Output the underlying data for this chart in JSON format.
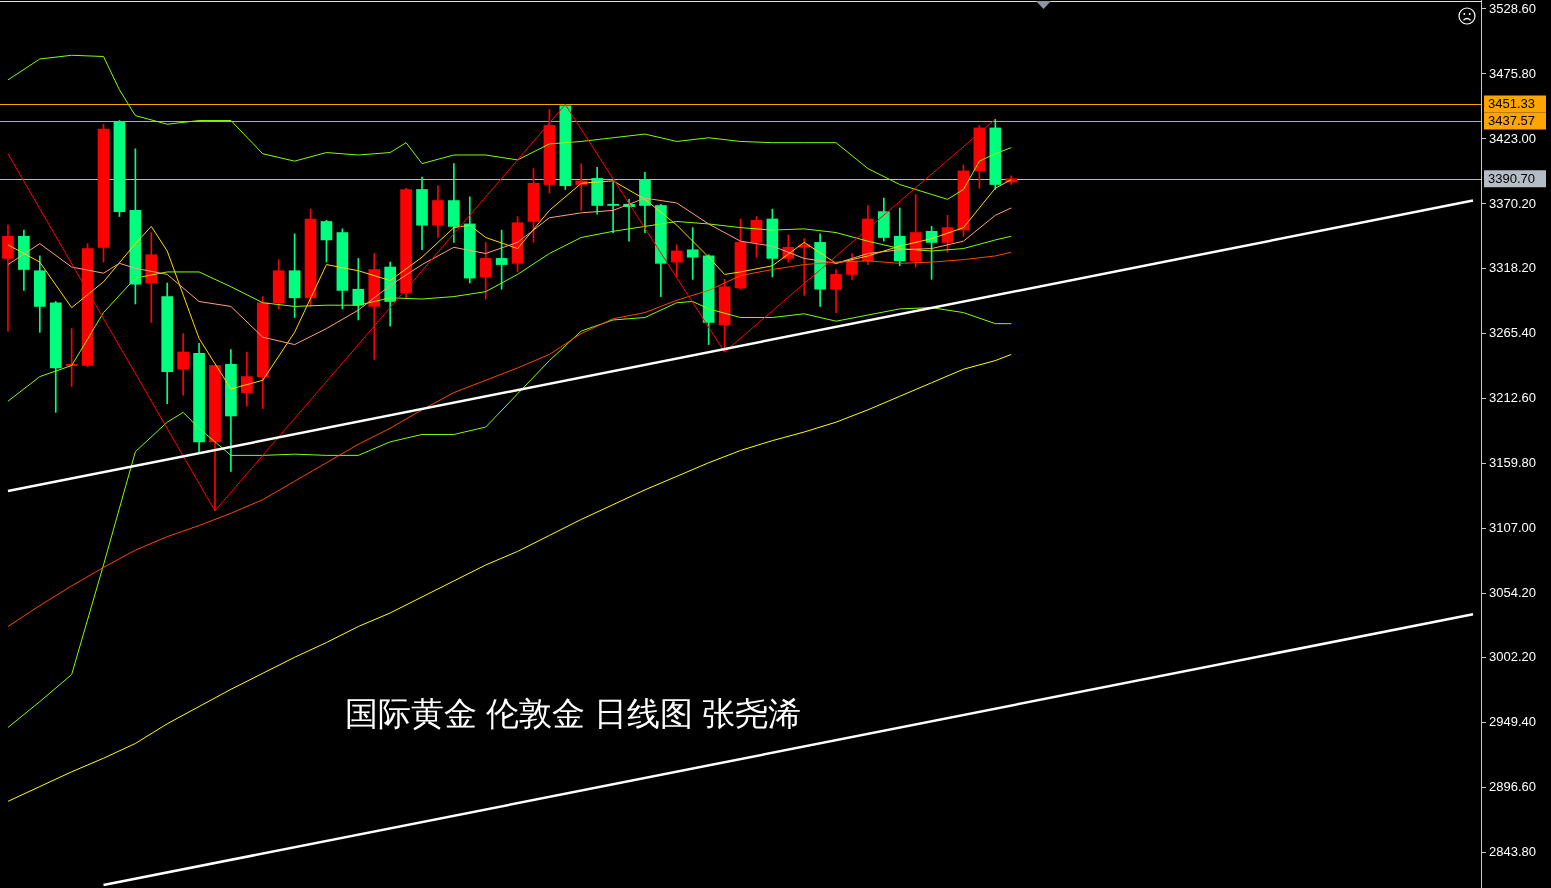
{
  "chart_data": {
    "type": "candlestick",
    "title": "国际黄金 伦敦金 日线图 张尧浠",
    "categories": [
      null,
      null,
      null,
      null,
      null,
      null,
      null,
      null,
      null,
      null,
      null,
      null,
      null,
      null,
      null,
      null,
      null,
      null,
      null,
      null,
      null,
      null,
      null,
      null,
      null,
      null,
      null,
      null,
      null,
      null,
      null,
      null,
      null,
      null,
      null,
      null,
      null,
      null,
      null,
      null,
      null,
      null,
      null,
      null,
      null,
      null,
      null,
      null,
      null,
      null,
      null,
      null,
      null,
      null,
      null,
      null,
      null,
      null,
      null,
      null,
      null,
      null,
      null,
      null,
      null,
      null,
      null,
      null,
      null,
      null,
      null,
      null,
      null,
      null,
      null,
      null,
      null,
      null,
      null,
      null,
      null,
      null,
      null,
      null,
      null,
      null,
      null,
      null,
      null,
      null,
      null,
      null,
      null
    ],
    "ohlc": [
      [
        3326,
        3353,
        3267,
        3344
      ],
      [
        3344,
        3349,
        3300,
        3317
      ],
      [
        3316,
        3328,
        3266,
        3287
      ],
      [
        3290,
        3291,
        3201,
        3237
      ],
      [
        3239,
        3269,
        3222,
        3240
      ],
      [
        3239,
        3338,
        3238,
        3334
      ],
      [
        3335,
        3435,
        3323,
        3431
      ],
      [
        3437,
        3438,
        3360,
        3364
      ],
      [
        3365,
        3415,
        3289,
        3305
      ],
      [
        3306,
        3347,
        3274,
        3329
      ],
      [
        3295,
        3306,
        3208,
        3234
      ],
      [
        3236,
        3265,
        3215,
        3250
      ],
      [
        3249,
        3257,
        3168,
        3177
      ],
      [
        3177,
        3239,
        3121,
        3239
      ],
      [
        3240,
        3252,
        3153,
        3198
      ],
      [
        3217,
        3250,
        3206,
        3230
      ],
      [
        3230,
        3295,
        3204,
        3290
      ],
      [
        3290,
        3325,
        3285,
        3316
      ],
      [
        3316,
        3346,
        3278,
        3294
      ],
      [
        3294,
        3366,
        3287,
        3358
      ],
      [
        3356,
        3357,
        3323,
        3341
      ],
      [
        3347,
        3350,
        3285,
        3300
      ],
      [
        3301,
        3326,
        3276,
        3288
      ],
      [
        3287,
        3330,
        3244,
        3317
      ],
      [
        3319,
        3323,
        3271,
        3291
      ],
      [
        3298,
        3383,
        3294,
        3382
      ],
      [
        3382,
        3392,
        3333,
        3353
      ],
      [
        3353,
        3385,
        3343,
        3373
      ],
      [
        3373,
        3403,
        3339,
        3352
      ],
      [
        3354,
        3376,
        3306,
        3310
      ],
      [
        3311,
        3339,
        3293,
        3326
      ],
      [
        3326,
        3349,
        3301,
        3321
      ],
      [
        3322,
        3360,
        3315,
        3355
      ],
      [
        3356,
        3399,
        3339,
        3387
      ],
      [
        3386,
        3447,
        3379,
        3434
      ],
      [
        3450,
        3451,
        3382,
        3385
      ],
      [
        3386,
        3403,
        3365,
        3389
      ],
      [
        3391,
        3400,
        3362,
        3369
      ],
      [
        3370,
        3388,
        3347,
        3369
      ],
      [
        3370,
        3374,
        3340,
        3368
      ],
      [
        3390,
        3396,
        3347,
        3369
      ],
      [
        3369,
        3370,
        3295,
        3322
      ],
      [
        3323,
        3337,
        3311,
        3332
      ],
      [
        3333,
        3351,
        3309,
        3327
      ],
      [
        3328,
        3329,
        3256,
        3274
      ],
      [
        3272,
        3309,
        3250,
        3303
      ],
      [
        3302,
        3358,
        3301,
        3339
      ],
      [
        3339,
        3360,
        3327,
        3357
      ],
      [
        3358,
        3366,
        3311,
        3326
      ],
      [
        3326,
        3345,
        3323,
        3335
      ],
      [
        3335,
        3342,
        3296,
        3337
      ],
      [
        3339,
        3346,
        3287,
        3301
      ],
      [
        3301,
        3317,
        3282,
        3313
      ],
      [
        3313,
        3330,
        3309,
        3324
      ],
      [
        3324,
        3369,
        3321,
        3358
      ],
      [
        3364,
        3375,
        3340,
        3343
      ],
      [
        3344,
        3367,
        3320,
        3324
      ],
      [
        3324,
        3378,
        3319,
        3347
      ],
      [
        3348,
        3352,
        3309,
        3339
      ],
      [
        3339,
        3361,
        3331,
        3351
      ],
      [
        3349,
        3402,
        3344,
        3397
      ],
      [
        3397,
        3434,
        3383,
        3432
      ],
      [
        3432,
        3439,
        3382,
        3386
      ],
      [
        3388,
        3393,
        3386,
        3390.7
      ],
      null,
      null,
      null,
      null,
      null,
      null,
      null,
      null,
      null,
      null,
      null,
      null,
      null,
      null,
      null,
      null,
      null,
      null,
      null,
      null,
      null,
      null,
      null,
      null,
      null,
      null,
      null,
      null,
      null
    ],
    "colors": [
      "#ff0000",
      "#00ff7f",
      "#00ff7f",
      "#00ff7f",
      "#ff0000",
      "#ff0000",
      "#ff0000",
      "#00ff7f",
      "#00ff7f",
      "#ff0000",
      "#00ff7f",
      "#ff0000",
      "#00ff7f",
      "#ff0000",
      "#00ff7f",
      "#ff0000",
      "#ff0000",
      "#ff0000",
      "#00ff7f",
      "#ff0000",
      "#00ff7f",
      "#00ff7f",
      "#00ff7f",
      "#ff0000",
      "#00ff7f",
      "#ff0000",
      "#00ff7f",
      "#ff0000",
      "#00ff7f",
      "#00ff7f",
      "#ff0000",
      "#00ff7f",
      "#ff0000",
      "#ff0000",
      "#ff0000",
      "#00ff7f",
      "#ff0000",
      "#00ff7f",
      "#00ff7f",
      "#00ff7f",
      "#00ff7f",
      "#00ff7f",
      "#ff0000",
      "#00ff7f",
      "#00ff7f",
      "#ff0000",
      "#ff0000",
      "#ff0000",
      "#00ff7f",
      "#ff0000",
      "#ff0000",
      "#00ff7f",
      "#ff0000",
      "#ff0000",
      "#ff0000",
      "#00ff7f",
      "#00ff7f",
      "#ff0000",
      "#00ff7f",
      "#ff0000",
      "#ff0000",
      "#ff0000",
      "#00ff7f",
      "#ff0000",
      null,
      null,
      null,
      null,
      null,
      null,
      null,
      null,
      null,
      null,
      null,
      null,
      null,
      null,
      null,
      null,
      null,
      null,
      null,
      null,
      null,
      null,
      null,
      null,
      null,
      null,
      null,
      null,
      null
    ],
    "series": [
      {
        "type": "line",
        "color": "#7fff00",
        "values": [
          3471,
          null,
          3488,
          null,
          3491,
          null,
          3490,
          3463,
          3442,
          null,
          3435,
          null,
          3438,
          null,
          3438,
          null,
          3411,
          null,
          3405,
          null,
          3412,
          null,
          3410,
          null,
          3412,
          3420,
          3403,
          null,
          3410,
          null,
          3410,
          null,
          3406,
          null,
          3419,
          null,
          3421,
          null,
          3424,
          null,
          3427,
          null,
          3421,
          null,
          3424,
          null,
          3421,
          null,
          3420,
          null,
          3420,
          null,
          3420,
          null,
          3399,
          null,
          3386,
          null,
          3378,
          3374,
          3382,
          3405,
          3411,
          3416,
          null,
          null,
          null,
          null,
          null,
          null,
          null,
          null,
          null,
          null,
          null,
          null,
          null,
          null,
          null,
          null,
          null,
          null,
          null,
          null,
          null,
          null,
          null,
          null,
          null,
          null,
          null,
          null,
          null
        ]
      },
      {
        "type": "line",
        "color": "#7fff00",
        "values": [
          3210,
          null,
          3230,
          null,
          3239,
          null,
          3282,
          null,
          3310,
          null,
          3315,
          null,
          3315,
          null,
          3303,
          null,
          3290,
          null,
          3287,
          null,
          3288,
          null,
          3288,
          null,
          3294,
          null,
          3293,
          null,
          3295,
          null,
          3299,
          null,
          3313,
          null,
          3330,
          null,
          3343,
          null,
          3348,
          null,
          3352,
          null,
          3356,
          null,
          3354,
          null,
          3351,
          null,
          3349,
          null,
          3350,
          null,
          3347,
          null,
          3340,
          null,
          3334,
          null,
          3332,
          null,
          3334,
          null,
          3341,
          3344,
          null,
          null,
          null,
          null,
          null,
          null,
          null,
          null,
          null,
          null,
          null,
          null,
          null,
          null,
          null,
          null,
          null,
          null,
          null,
          null,
          null,
          null,
          null,
          null,
          null,
          null,
          null,
          null,
          null
        ]
      },
      {
        "type": "line",
        "color": "#7fff00",
        "values": [
          2945,
          null,
          2966,
          null,
          2988,
          null,
          3077,
          null,
          3169,
          null,
          3193,
          3201,
          3188,
          null,
          3166,
          null,
          3166,
          null,
          3167,
          null,
          3166,
          null,
          3166,
          null,
          3177,
          null,
          3183,
          null,
          3183,
          null,
          3189,
          null,
          3216,
          null,
          3243,
          null,
          3267,
          null,
          3276,
          null,
          3278,
          null,
          3290,
          3291,
          3285,
          null,
          3278,
          null,
          3278,
          null,
          3281,
          null,
          3275,
          null,
          3280,
          null,
          3285,
          null,
          3286,
          null,
          3282,
          null,
          3273,
          3273,
          null,
          null,
          null,
          null,
          null,
          null,
          null,
          null,
          null,
          null,
          null,
          null,
          null,
          null,
          null,
          null,
          null,
          null,
          null,
          null,
          null,
          null,
          null,
          null,
          null,
          null,
          null,
          null,
          null
        ]
      },
      {
        "type": "line",
        "color": "#ffd700",
        "values": [
          3337,
          null,
          3323,
          null,
          3286,
          null,
          3307,
          null,
          3338,
          3352,
          3332,
          null,
          3261,
          null,
          3220,
          null,
          3227,
          null,
          3266,
          null,
          3321,
          null,
          3316,
          null,
          3308,
          null,
          3327,
          null,
          3351,
          3353,
          3343,
          null,
          3334,
          null,
          3365,
          null,
          3387,
          null,
          3389,
          null,
          3374,
          null,
          3353,
          null,
          3327,
          3313,
          3315,
          null,
          3320,
          null,
          3339,
          null,
          3322,
          null,
          3328,
          null,
          3336,
          null,
          3342,
          null,
          3351,
          null,
          3383,
          3390,
          null,
          null,
          null,
          null,
          null,
          null,
          null,
          null,
          null,
          null,
          null,
          null,
          null,
          null,
          null,
          null,
          null,
          null,
          null,
          null,
          null,
          null,
          null,
          null,
          null,
          null,
          null,
          null,
          null
        ]
      },
      {
        "type": "line",
        "color": "#ffa07a",
        "values": [
          3321,
          null,
          3338,
          null,
          3319,
          null,
          3314,
          3322,
          3318,
          null,
          3313,
          null,
          3291,
          null,
          3287,
          null,
          3262,
          null,
          3256,
          null,
          3269,
          null,
          3284,
          null,
          3304,
          null,
          3321,
          null,
          3335,
          null,
          3330,
          null,
          3339,
          null,
          3359,
          null,
          3363,
          null,
          3365,
          null,
          3375,
          null,
          3371,
          null,
          3354,
          null,
          3340,
          null,
          3336,
          null,
          3326,
          null,
          3322,
          null,
          3330,
          null,
          3333,
          null,
          3334,
          null,
          3340,
          null,
          3361,
          3367,
          null,
          null,
          null,
          null,
          null,
          null,
          null,
          null,
          null,
          null,
          null,
          null,
          null,
          null,
          null,
          null,
          null,
          null,
          null,
          null,
          null,
          null,
          null,
          null,
          null,
          null,
          null,
          null,
          null
        ]
      },
      {
        "type": "line",
        "color": "#ff4500",
        "values": [
          3027,
          null,
          3044,
          null,
          3060,
          null,
          3075,
          null,
          3089,
          null,
          3100,
          null,
          3109,
          null,
          3119,
          null,
          3130,
          null,
          3145,
          null,
          3160,
          null,
          3175,
          null,
          3188,
          null,
          3203,
          null,
          3217,
          null,
          3227,
          null,
          3237,
          null,
          3248,
          null,
          3265,
          null,
          3277,
          null,
          3282,
          null,
          3292,
          null,
          3300,
          null,
          3312,
          null,
          3317,
          null,
          3321,
          null,
          3323,
          null,
          3324,
          null,
          3322,
          null,
          3323,
          null,
          3325,
          null,
          3328,
          3331,
          null,
          null,
          null,
          null,
          null,
          null,
          null,
          null,
          null,
          null,
          null,
          null,
          null,
          null,
          null,
          null,
          null,
          null,
          null,
          null,
          null,
          null,
          null,
          null,
          null,
          null,
          null,
          null,
          null
        ]
      },
      {
        "type": "line",
        "color": "#ffff00",
        "values": [
          2885,
          null,
          2897,
          null,
          2909,
          null,
          2920,
          null,
          2932,
          null,
          2948,
          null,
          2962,
          null,
          2976,
          null,
          2989,
          null,
          3002,
          null,
          3014,
          null,
          3027,
          null,
          3038,
          null,
          3051,
          null,
          3064,
          null,
          3077,
          null,
          3088,
          null,
          3101,
          null,
          3114,
          null,
          3126,
          null,
          3138,
          null,
          3149,
          null,
          3160,
          null,
          3170,
          null,
          3178,
          null,
          3185,
          null,
          3193,
          null,
          3203,
          null,
          3214,
          null,
          3225,
          null,
          3236,
          null,
          3243,
          3248,
          null,
          null,
          null,
          null,
          null,
          null,
          null,
          null,
          null,
          null,
          null,
          null,
          null,
          null,
          null,
          null,
          null,
          null,
          null,
          null,
          null,
          null,
          null,
          null,
          null,
          null,
          null,
          null,
          null
        ]
      },
      {
        "type": "line",
        "color": "#ff0000",
        "values": [
          3411,
          null,
          null,
          null,
          null,
          null,
          null,
          null,
          null,
          null,
          null,
          null,
          null,
          3121,
          null,
          null,
          null,
          null,
          null,
          null,
          null,
          null,
          null,
          null,
          null,
          null,
          null,
          null,
          null,
          null,
          null,
          null,
          null,
          null,
          null,
          3451,
          null,
          null,
          null,
          null,
          null,
          null,
          null,
          null,
          null,
          3250,
          null,
          null,
          null,
          null,
          null,
          null,
          null,
          null,
          null,
          null,
          null,
          null,
          null,
          null,
          null,
          null,
          3439,
          null,
          null,
          null,
          null,
          null,
          null,
          null,
          null,
          null,
          null,
          null,
          null,
          null,
          null,
          null,
          null,
          null,
          null,
          null,
          null,
          null,
          null,
          null,
          null,
          null,
          null,
          null,
          null,
          null,
          null
        ]
      },
      {
        "type": "line",
        "color": "#ffffff",
        "values": [
          3137,
          null,
          null,
          null,
          null,
          null,
          null,
          null,
          null,
          null,
          null,
          null,
          null,
          null,
          null,
          null,
          null,
          null,
          null,
          null,
          null,
          null,
          null,
          null,
          null,
          null,
          null,
          null,
          null,
          null,
          null,
          null,
          null,
          null,
          null,
          null,
          null,
          null,
          null,
          null,
          null,
          null,
          null,
          null,
          null,
          null,
          null,
          null,
          null,
          null,
          null,
          null,
          null,
          null,
          null,
          null,
          null,
          null,
          null,
          null,
          null,
          null,
          null,
          null,
          null,
          null,
          null,
          null,
          null,
          null,
          null,
          null,
          null,
          null,
          null,
          null,
          null,
          null,
          null,
          null,
          null,
          null,
          null,
          null,
          null,
          null,
          null,
          null,
          null,
          null,
          null,
          null,
          3373
        ]
      },
      {
        "type": "line",
        "color": "#ffffff",
        "values": [
          null,
          null,
          null,
          null,
          null,
          null,
          2817,
          null,
          null,
          null,
          null,
          null,
          null,
          null,
          null,
          null,
          null,
          null,
          null,
          null,
          null,
          null,
          null,
          null,
          null,
          null,
          null,
          null,
          null,
          null,
          null,
          null,
          null,
          null,
          null,
          null,
          null,
          null,
          null,
          null,
          null,
          null,
          null,
          null,
          null,
          null,
          null,
          null,
          null,
          null,
          null,
          null,
          null,
          null,
          null,
          null,
          null,
          null,
          null,
          null,
          null,
          null,
          null,
          null,
          null,
          null,
          null,
          null,
          null,
          null,
          null,
          null,
          null,
          null,
          null,
          null,
          null,
          null,
          null,
          null,
          null,
          null,
          null,
          null,
          null,
          null,
          null,
          null,
          null,
          null,
          null,
          null,
          3037
        ]
      }
    ],
    "ylim": [
      2814.6,
      3535.9
    ],
    "yticks": [
      {
        "value": 2843.8,
        "label": "2843.80"
      },
      {
        "value": 2896.6,
        "label": "2896.60"
      },
      {
        "value": 2949.4,
        "label": "2949.40"
      },
      {
        "value": 3002.2,
        "label": "3002.20"
      },
      {
        "value": 3054.2,
        "label": "3054.20"
      },
      {
        "value": 3107,
        "label": "3107.00"
      },
      {
        "value": 3159.8,
        "label": "3159.80"
      },
      {
        "value": 3212.6,
        "label": "3212.60"
      },
      {
        "value": 3265.4,
        "label": "3265.40"
      },
      {
        "value": 3318.2,
        "label": "3318.20"
      },
      {
        "value": 3370.2,
        "label": "3370.20"
      },
      {
        "value": 3423,
        "label": "3423.00"
      },
      {
        "value": 3475.8,
        "label": "3475.80"
      },
      {
        "value": 3528.6,
        "label": "3528.60"
      }
    ],
    "ref_lines": [
      {
        "axis": "y",
        "value": 3451.33,
        "label": "3451.33",
        "color": "#ffa500"
      },
      {
        "axis": "y",
        "value": 3437.57,
        "label": "3437.57",
        "color": "#ffa500"
      },
      {
        "axis": "y",
        "value": 3390.7,
        "label": "3390.70",
        "color": "#b4bcc4"
      }
    ],
    "tick_labels": "y"
  }
}
